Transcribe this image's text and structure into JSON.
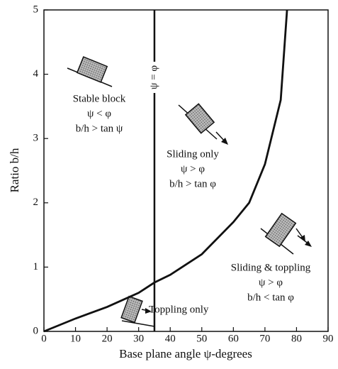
{
  "chart_data": {
    "type": "line",
    "x_label": "Base plane angle ψ-degrees",
    "y_label": "Ratio b/h",
    "xlim": [
      0,
      90
    ],
    "xticks": [
      0,
      10,
      20,
      30,
      40,
      50,
      60,
      70,
      80,
      90
    ],
    "ylim": [
      0,
      5
    ],
    "yticks": [
      0,
      1,
      2,
      3,
      4,
      5
    ],
    "series": [
      {
        "color": "#111111",
        "x": [
          0,
          10,
          20,
          30,
          35,
          40,
          50,
          60,
          65,
          70,
          75,
          77
        ],
        "values": [
          0,
          0.2,
          0.38,
          0.6,
          0.76,
          0.88,
          1.2,
          1.7,
          2.0,
          2.6,
          3.6,
          5.0
        ]
      },
      {
        "name": "ψ = φ",
        "color": "#111111",
        "x": [
          35,
          35
        ],
        "values": [
          0,
          5
        ]
      }
    ],
    "annotations": [
      [
        "Stable block",
        "ψ < φ",
        "b/h > tan ψ"
      ],
      [
        "Sliding only",
        "ψ > φ",
        "b/h > tan φ"
      ],
      [
        "Sliding & toppling",
        "ψ > φ",
        "b/h < tan φ"
      ],
      [
        "Toppling only"
      ]
    ]
  }
}
